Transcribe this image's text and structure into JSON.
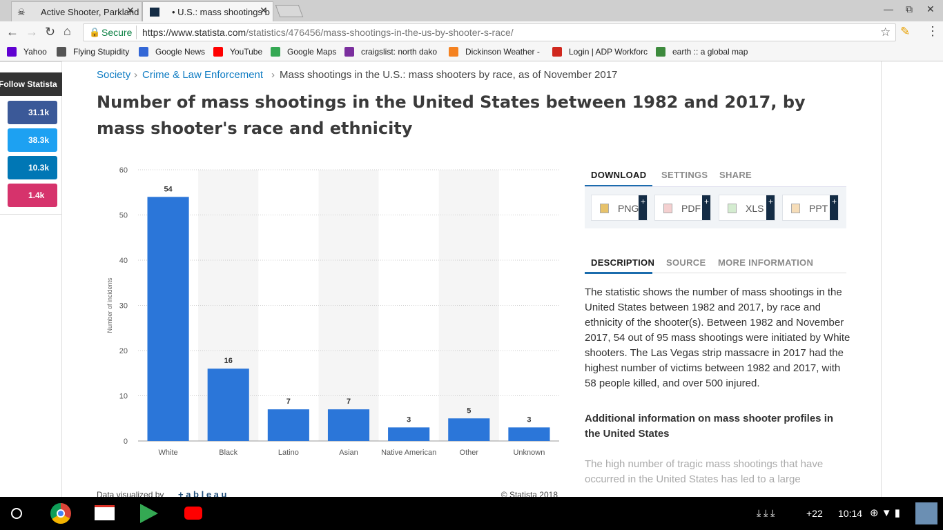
{
  "browser": {
    "tabs": [
      "Active Shooter, Parkland",
      "• U.S.: mass shootings b"
    ],
    "secure": "Secure",
    "url_host": "https://www.statista.com",
    "url_path": "/statistics/476456/mass-shootings-in-the-us-by-shooter-s-race/"
  },
  "bookmarks": [
    "Yahoo",
    "Flying Stupidity",
    "Google News",
    "YouTube",
    "Google Maps",
    "craigslist: north dako",
    "Dickinson Weather -",
    "Login | ADP Workforc",
    "earth :: a global map"
  ],
  "social": {
    "follow": "Follow Statista",
    "counts": [
      "31.1k",
      "38.3k",
      "10.3k",
      "1.4k"
    ]
  },
  "breadcrumb": [
    "Society",
    "Crime & Law Enforcement",
    "Mass shootings in the U.S.: mass shooters by race, as of November 2017"
  ],
  "title": "Number of mass shootings in the United States between 1982 and 2017, by mass shooter's race and ethnicity",
  "chart_data": {
    "type": "bar",
    "categories": [
      "White",
      "Black",
      "Latino",
      "Asian",
      "Native American",
      "Other",
      "Unknown"
    ],
    "values": [
      54,
      16,
      7,
      7,
      3,
      5,
      3
    ],
    "color": "#2b76d9",
    "y_label": "Number of incidents",
    "ylim": [
      0,
      60
    ],
    "yticks": [
      0,
      10,
      20,
      30,
      40,
      50,
      60
    ],
    "grid": true,
    "credit": "Data visualized by",
    "credit_brand": "+ a b l e a u",
    "copyright": "© Statista 2018"
  },
  "download": {
    "tabs": [
      "DOWNLOAD",
      "SETTINGS",
      "SHARE"
    ],
    "buttons": [
      "PNG",
      "PDF",
      "XLS",
      "PPT"
    ]
  },
  "description": {
    "tabs": [
      "DESCRIPTION",
      "SOURCE",
      "MORE INFORMATION"
    ],
    "text": "The statistic shows the number of mass shootings in the United States between 1982 and 2017, by race and ethnicity of the shooter(s). Between 1982 and November 2017, 54 out of 95 mass shootings were initiated by White shooters. The Las Vegas strip massacre in 2017 had the highest number of victims between 1982 and 2017, with 58 people killed, and over 500 injured.",
    "heading": "Additional information on mass shooter profiles in the United States",
    "more": "The high number of tragic mass shootings that have occurred in the United States has led to a large"
  },
  "taskbar": {
    "notifications": "+22",
    "time": "10:14"
  }
}
